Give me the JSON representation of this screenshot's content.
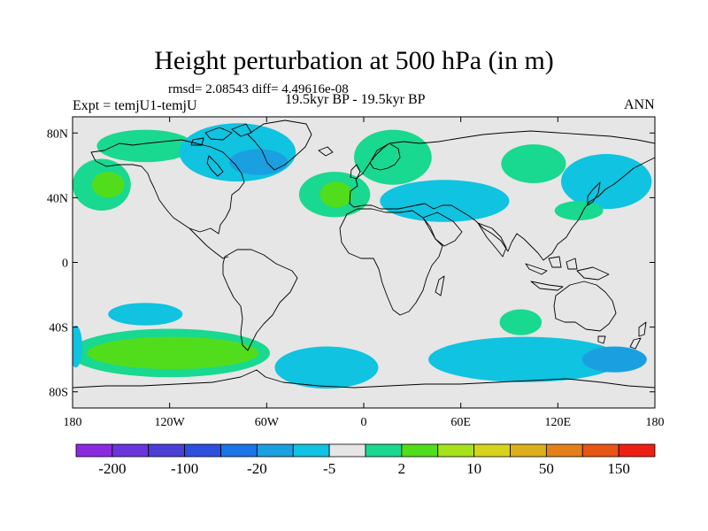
{
  "title": "Height perturbation at 500 hPa (in m)",
  "stats": "rmsd= 2.08543 diff= 4.49616e-08",
  "experiment": "Expt = temjU1-temjU",
  "period": "19.5kyr BP - 19.5kyr BP",
  "season": "ANN",
  "map": {
    "projection": "cylindrical-equidistant",
    "lon_range": [
      -180,
      180
    ],
    "lat_range": [
      -90,
      90
    ],
    "background_color": "#e6e6e6",
    "x_tick_labels": [
      {
        "lon": -180,
        "label": "180"
      },
      {
        "lon": -120,
        "label": "120W"
      },
      {
        "lon": -60,
        "label": "60W"
      },
      {
        "lon": 0,
        "label": "0"
      },
      {
        "lon": 60,
        "label": "60E"
      },
      {
        "lon": 120,
        "label": "120E"
      },
      {
        "lon": 180,
        "label": "180"
      }
    ],
    "y_tick_labels": [
      {
        "lat": 80,
        "label": "80N"
      },
      {
        "lat": 40,
        "label": "40N"
      },
      {
        "lat": 0,
        "label": "0"
      },
      {
        "lat": -40,
        "label": "40S"
      },
      {
        "lat": -80,
        "label": "80S"
      }
    ]
  },
  "colorbar": {
    "colors": [
      "#8a2be2",
      "#6a35dc",
      "#4b3fd8",
      "#2d4fe0",
      "#1a75e6",
      "#1aa0e0",
      "#10c3e0",
      "#e6e6e6",
      "#19d88f",
      "#52dd1c",
      "#a6e21a",
      "#d5d41b",
      "#dcb01a",
      "#e38018",
      "#e85515",
      "#ee2012"
    ],
    "labels": [
      {
        "after": 1,
        "text": "-200"
      },
      {
        "after": 3,
        "text": "-100"
      },
      {
        "after": 5,
        "text": "-20"
      },
      {
        "after": 7,
        "text": "-5"
      },
      {
        "after": 9,
        "text": "2"
      },
      {
        "after": 11,
        "text": "10"
      },
      {
        "after": 13,
        "text": "50"
      },
      {
        "after": 15,
        "text": "150"
      }
    ]
  },
  "anomalies": [
    {
      "lon": -135,
      "lat": 72,
      "rlon": 30,
      "rlat": 10,
      "level": "#19d88f"
    },
    {
      "lon": -78,
      "lat": 68,
      "rlon": 36,
      "rlat": 18,
      "level": "#10c3e0"
    },
    {
      "lon": -65,
      "lat": 62,
      "rlon": 18,
      "rlat": 8,
      "level": "#1aa0e0"
    },
    {
      "lon": 18,
      "lat": 65,
      "rlon": 24,
      "rlat": 17,
      "level": "#19d88f"
    },
    {
      "lon": -162,
      "lat": 48,
      "rlon": 18,
      "rlat": 16,
      "level": "#19d88f"
    },
    {
      "lon": -158,
      "lat": 48,
      "rlon": 10,
      "rlat": 8,
      "level": "#52dd1c"
    },
    {
      "lon": -18,
      "lat": 42,
      "rlon": 22,
      "rlat": 14,
      "level": "#19d88f"
    },
    {
      "lon": -17,
      "lat": 42,
      "rlon": 10,
      "rlat": 8,
      "level": "#52dd1c"
    },
    {
      "lon": 50,
      "lat": 38,
      "rlon": 40,
      "rlat": 13,
      "level": "#10c3e0"
    },
    {
      "lon": 105,
      "lat": 61,
      "rlon": 20,
      "rlat": 12,
      "level": "#19d88f"
    },
    {
      "lon": 150,
      "lat": 50,
      "rlon": 28,
      "rlat": 17,
      "level": "#10c3e0"
    },
    {
      "lon": 133,
      "lat": 32,
      "rlon": 15,
      "rlat": 6,
      "level": "#19d88f"
    },
    {
      "lon": -135,
      "lat": -32,
      "rlon": 23,
      "rlat": 7,
      "level": "#10c3e0"
    },
    {
      "lon": -120,
      "lat": -56,
      "rlon": 62,
      "rlat": 15,
      "level": "#19d88f"
    },
    {
      "lon": -118,
      "lat": -56,
      "rlon": 53,
      "rlat": 10,
      "level": "#52dd1c"
    },
    {
      "lon": -23,
      "lat": -65,
      "rlon": 32,
      "rlat": 13,
      "level": "#10c3e0"
    },
    {
      "lon": 97,
      "lat": -37,
      "rlon": 13,
      "rlat": 8,
      "level": "#19d88f"
    },
    {
      "lon": 100,
      "lat": -60,
      "rlon": 60,
      "rlat": 14,
      "level": "#10c3e0"
    },
    {
      "lon": 155,
      "lat": -60,
      "rlon": 20,
      "rlat": 8,
      "level": "#1aa0e0"
    },
    {
      "lon": -178,
      "lat": -52,
      "rlon": 4,
      "rlat": 13,
      "level": "#10c3e0"
    }
  ]
}
